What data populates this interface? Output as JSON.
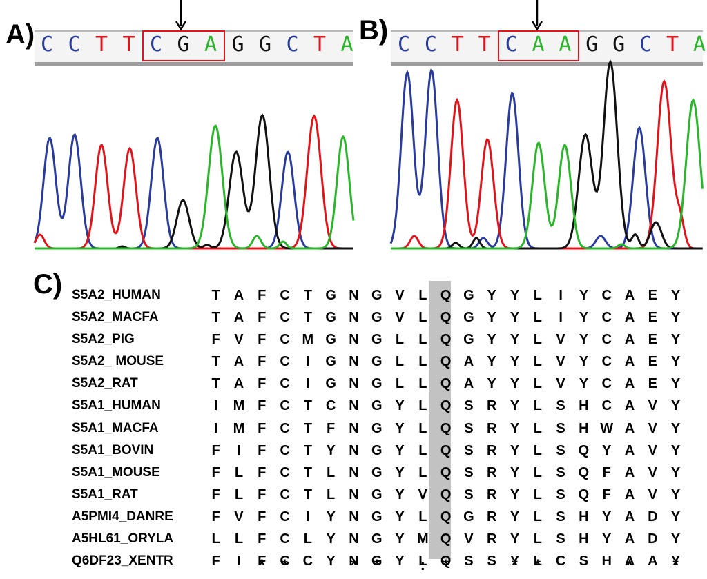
{
  "panels": {
    "a": {
      "label": "A)",
      "bases": [
        "C",
        "C",
        "T",
        "T",
        "C",
        "G",
        "A",
        "G",
        "G",
        "C",
        "T",
        "A"
      ],
      "trace_colors": {
        "C": "#2a3b9e",
        "T": "#e0141b",
        "G": "#111111",
        "A": "#2bb52b"
      }
    },
    "b": {
      "label": "B)",
      "bases": [
        "C",
        "C",
        "T",
        "T",
        "C",
        "A",
        "A",
        "G",
        "G",
        "C",
        "T",
        "A"
      ]
    },
    "c": {
      "label": "C)",
      "sequence_names": [
        "S5A2_HUMAN",
        "S5A2_MACFA",
        "S5A2_PIG",
        "S5A2_ MOUSE",
        "S5A2_RAT",
        "S5A1_HUMAN",
        "S5A1_MACFA",
        "S5A1_BOVIN",
        "S5A1_MOUSE",
        "S5A1_RAT",
        "A5PMI4_DANRE",
        "A5HL61_ORYLA",
        "Q6DF23_XENTR"
      ],
      "alignment": [
        "TAFCTGNGVLQGYYLIYCAEY",
        "TAFCTGNGVLQGYYLIYCAEY",
        "FVFCMGNGLLQGYYLVYCAEY",
        "TAFCIGNGLLQAYYLVYCAEY",
        "TAFCIGNGLLQAYYLVYCAEY",
        "IMFCTCNGYLQSRYLSHCAVY",
        "IMFCTFNGYLQSRYLSHWAVY",
        "FIFCTYNGYLQSRYLSQYAVY",
        "FLFCTLNGYLQSRYLSQFAVY",
        "FLFCTLNGYVQSRYLSQFAVY",
        "FVFCIYNGYLQGRYLSHYADY",
        "LLFCLYNGYMQVRYLSHYADY",
        "FIFCCYNGYLQSSYLCSHAAY"
      ],
      "conservation": [
        "",
        "",
        "*",
        "*",
        "",
        "",
        "*",
        "*",
        "",
        ":",
        "*",
        "",
        "",
        "*",
        "*",
        "",
        "",
        "",
        "*",
        "",
        "*"
      ],
      "highlight_color": "#c2c2c2"
    }
  }
}
